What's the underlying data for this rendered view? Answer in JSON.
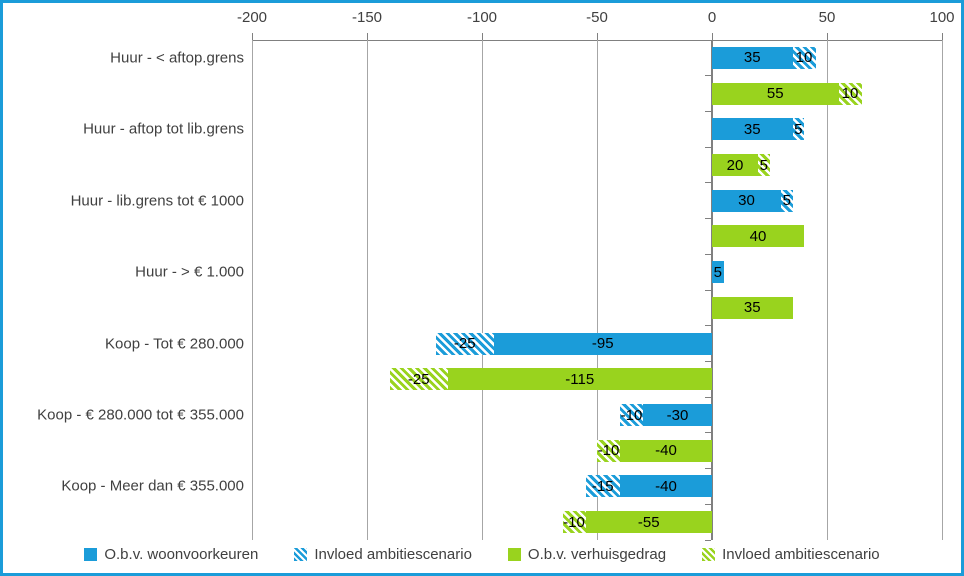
{
  "chart_data": {
    "type": "bar",
    "orientation": "horizontal",
    "title": "",
    "x_axis": {
      "position": "top",
      "min": -200,
      "max": 100,
      "tick_interval": 50,
      "tick_values": [
        -200,
        -150,
        -100,
        -50,
        0,
        50,
        100
      ],
      "tick_labels": [
        "-200",
        "-150",
        "-100",
        "-50",
        "0",
        "50",
        "100"
      ]
    },
    "categories": [
      "Huur - < aftop.grens",
      "Huur - aftop tot lib.grens",
      "Huur - lib.grens tot € 1000",
      "Huur - > € 1.000",
      "Koop - Tot € 280.000",
      "Koop - € 280.000 tot € 355.000",
      "Koop - Meer dan € 355.000"
    ],
    "series": [
      {
        "name": "O.b.v. woonvoorkeuren",
        "color": "#1b9cd9",
        "pattern": "solid",
        "group": "blue",
        "values": [
          35,
          35,
          30,
          5,
          -95,
          -30,
          -40
        ]
      },
      {
        "name": "Invloed ambitiescenario",
        "color": "#1b9cd9",
        "pattern": "diagonal-hatch",
        "group": "blue",
        "values": [
          10,
          5,
          5,
          0,
          -25,
          -10,
          -15
        ]
      },
      {
        "name": "O.b.v. verhuisgedrag",
        "color": "#99d31e",
        "pattern": "solid",
        "group": "green",
        "values": [
          55,
          20,
          40,
          35,
          -115,
          -40,
          -55
        ]
      },
      {
        "name": "Invloed ambitiescenario",
        "color": "#99d31e",
        "pattern": "diagonal-hatch",
        "group": "green",
        "values": [
          10,
          5,
          0,
          0,
          -25,
          -10,
          -10
        ]
      }
    ],
    "legend": {
      "position": "bottom",
      "entries": [
        {
          "label": "O.b.v. woonvoorkeuren",
          "color": "#1b9cd9",
          "pattern": "solid"
        },
        {
          "label": "Invloed ambitiescenario",
          "color": "#1b9cd9",
          "pattern": "diagonal-hatch"
        },
        {
          "label": "O.b.v. verhuisgedrag",
          "color": "#99d31e",
          "pattern": "solid"
        },
        {
          "label": "Invloed ambitiescenario",
          "color": "#99d31e",
          "pattern": "diagonal-hatch"
        }
      ]
    },
    "gridlines": true,
    "colors": {
      "border": "#1b9cd9",
      "gridline": "#a6a6a6",
      "axis": "#808080",
      "label": "#404040",
      "bar_label": "#000000",
      "background": "#ffffff"
    }
  }
}
